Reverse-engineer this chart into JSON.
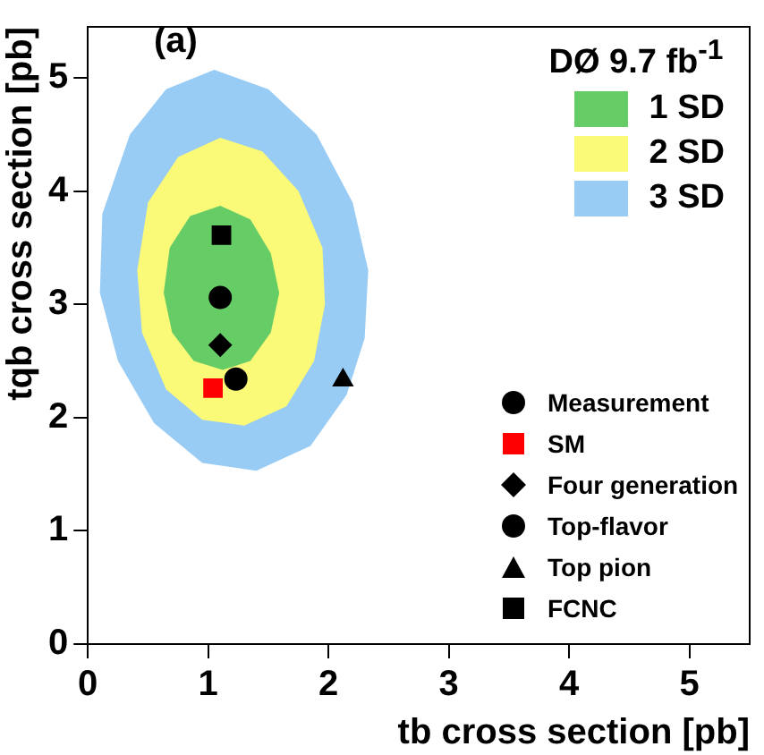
{
  "chart_data": {
    "type": "scatter",
    "xlabel": "tb cross section [pb]",
    "ylabel": "tqb cross section [pb]",
    "legend_title": "DØ 9.7 fb$^{-1}$",
    "annotations": [
      "(a)"
    ],
    "xlim": [
      0,
      5.5
    ],
    "ylim": [
      0,
      5.45
    ],
    "xticks": [
      0,
      1,
      2,
      3,
      4,
      5
    ],
    "yticks": [
      0,
      1,
      2,
      3,
      4,
      5
    ],
    "grid": false,
    "legend": "right",
    "series": [
      {
        "name": "3 SD",
        "type": "area",
        "color": "#99ccf5",
        "x": [
          1.05,
          1.5,
          1.9,
          2.2,
          2.33,
          2.3,
          2.15,
          1.85,
          1.4,
          0.95,
          0.55,
          0.25,
          0.1,
          0.12,
          0.35,
          0.65,
          1.05
        ],
        "values": [
          5.07,
          4.9,
          4.5,
          3.9,
          3.3,
          2.7,
          2.2,
          1.75,
          1.53,
          1.6,
          1.95,
          2.5,
          3.1,
          3.8,
          4.5,
          4.9,
          5.07
        ]
      },
      {
        "name": "2 SD",
        "type": "area",
        "color": "#fafa78",
        "x": [
          1.1,
          1.45,
          1.75,
          1.95,
          1.97,
          1.88,
          1.65,
          1.3,
          0.95,
          0.65,
          0.45,
          0.41,
          0.5,
          0.75,
          1.1
        ],
        "values": [
          4.47,
          4.35,
          4.0,
          3.5,
          3.0,
          2.5,
          2.1,
          1.93,
          1.98,
          2.25,
          2.75,
          3.3,
          3.9,
          4.3,
          4.47
        ]
      },
      {
        "name": "1 SD",
        "type": "area",
        "color": "#66cc66",
        "x": [
          1.1,
          1.35,
          1.52,
          1.59,
          1.52,
          1.35,
          1.12,
          0.88,
          0.7,
          0.63,
          0.68,
          0.85,
          1.1
        ],
        "values": [
          3.87,
          3.75,
          3.45,
          3.1,
          2.75,
          2.5,
          2.42,
          2.5,
          2.75,
          3.1,
          3.5,
          3.78,
          3.87
        ]
      },
      {
        "name": "Measurement",
        "type": "scatter",
        "marker": "circle",
        "color": "#000000",
        "x": [
          1.1
        ],
        "values": [
          3.06
        ]
      },
      {
        "name": "SM",
        "type": "scatter",
        "marker": "square",
        "color": "#ff0000",
        "x": [
          1.04
        ],
        "values": [
          2.26
        ]
      },
      {
        "name": "Four generation",
        "type": "scatter",
        "marker": "diamond",
        "color": "#000000",
        "x": [
          1.1
        ],
        "values": [
          2.64
        ]
      },
      {
        "name": "Top-flavor",
        "type": "scatter",
        "marker": "circle",
        "color": "#000000",
        "x": [
          1.23
        ],
        "values": [
          2.34
        ]
      },
      {
        "name": "Top pion",
        "type": "scatter",
        "marker": "triangle",
        "color": "#000000",
        "x": [
          2.12
        ],
        "values": [
          2.33
        ]
      },
      {
        "name": "FCNC",
        "type": "scatter",
        "marker": "square",
        "color": "#000000",
        "x": [
          1.11
        ],
        "values": [
          3.61
        ]
      }
    ]
  }
}
